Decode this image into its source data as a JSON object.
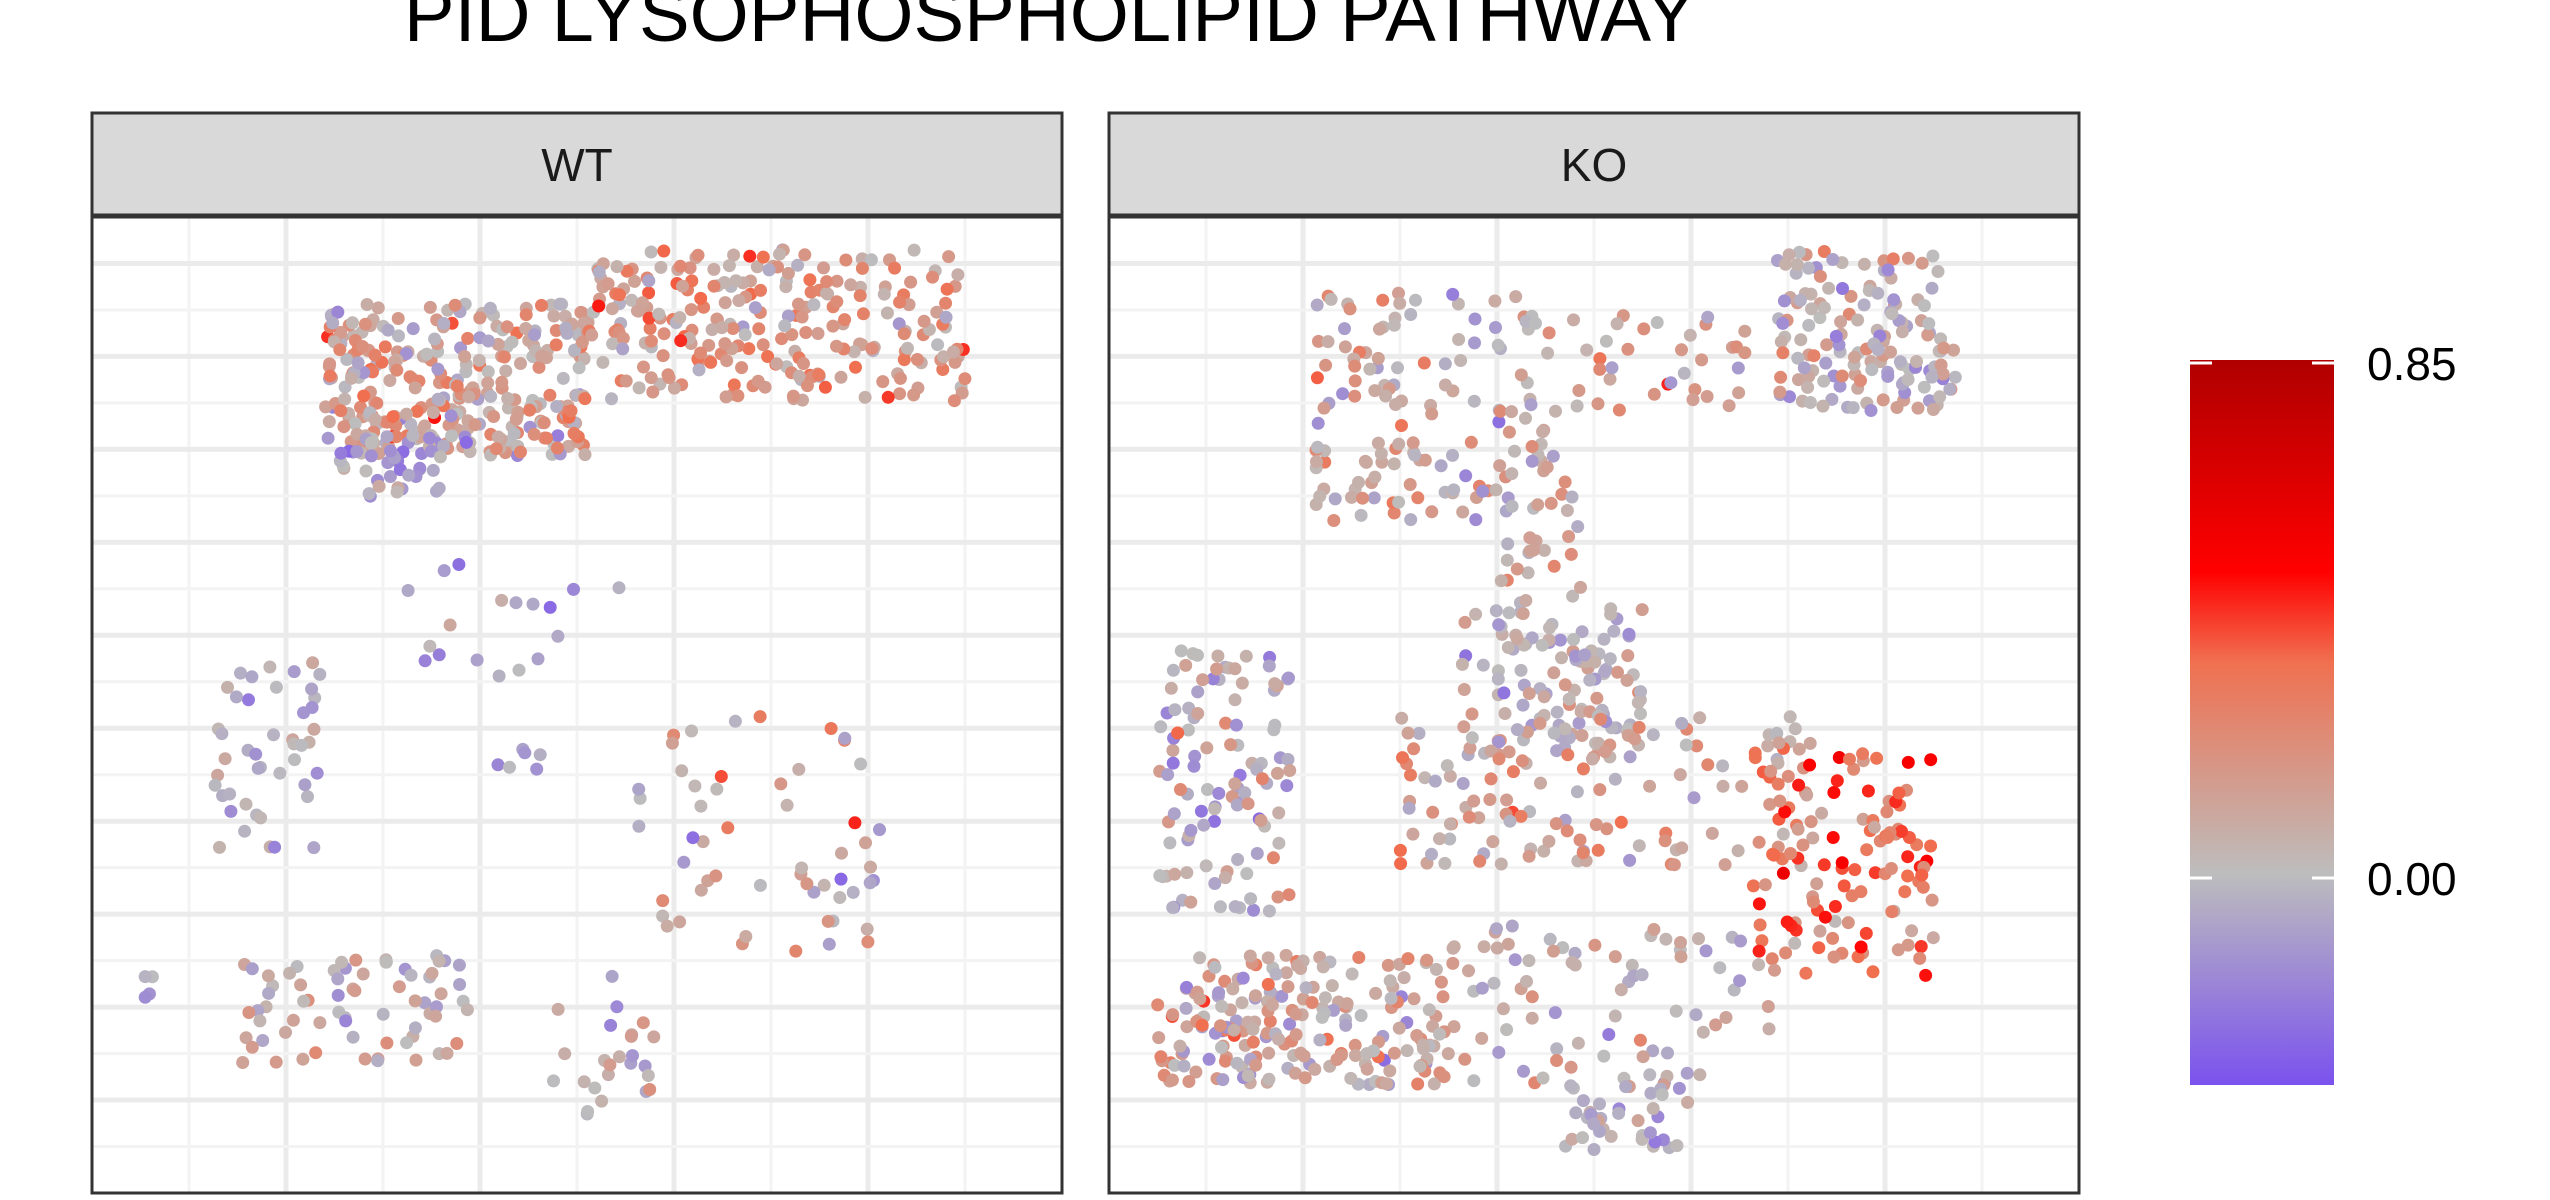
{
  "chart_data": {
    "type": "scatter",
    "title": "PID LYSOPHOSPHOLIPID PATHWAY",
    "xlabel": "",
    "ylabel": "",
    "grid": true,
    "facets": [
      "WT",
      "KO"
    ],
    "legend": {
      "placement": "right",
      "type": "colorbar",
      "title": "",
      "range": [
        -0.35,
        0.85
      ],
      "breaks": [
        0.85,
        0.0
      ],
      "break_labels": [
        "0.85",
        "0.00"
      ],
      "colors": {
        "low": "#7b52ee",
        "mid": "#bdbdbd",
        "high": "#ff0000",
        "max": "#b00000"
      },
      "stops": [
        [
          -0.35,
          "#7b52ee"
        ],
        [
          0.0,
          "#bdbdbd"
        ],
        [
          0.35,
          "#f07050"
        ],
        [
          0.5,
          "#ff0000"
        ],
        [
          0.85,
          "#b00000"
        ]
      ]
    },
    "series": [
      {
        "name": "WT",
        "clusters": [
          {
            "x": [
              -1.6,
              0.6
            ],
            "y": [
              2.8,
              4.2
            ],
            "n": 320,
            "vmean": 0.1,
            "vsd": 0.18
          },
          {
            "x": [
              0.6,
              3.7
            ],
            "y": [
              3.3,
              4.7
            ],
            "n": 260,
            "vmean": 0.14,
            "vsd": 0.17
          },
          {
            "x": [
              -1.5,
              -0.6
            ],
            "y": [
              2.4,
              3.0
            ],
            "n": 45,
            "vmean": -0.08,
            "vsd": 0.12
          },
          {
            "x": [
              -2.5,
              -1.6
            ],
            "y": [
              -0.9,
              0.9
            ],
            "n": 45,
            "vmean": -0.02,
            "vsd": 0.14
          },
          {
            "x": [
              -1.0,
              1.0
            ],
            "y": [
              0.7,
              1.8
            ],
            "n": 18,
            "vmean": -0.05,
            "vsd": 0.12
          },
          {
            "x": [
              -0.2,
              0.2
            ],
            "y": [
              -0.1,
              0.1
            ],
            "n": 6,
            "vmean": -0.1,
            "vsd": 0.06
          },
          {
            "x": [
              1.0,
              3.0
            ],
            "y": [
              -1.8,
              0.4
            ],
            "n": 55,
            "vmean": 0.08,
            "vsd": 0.2
          },
          {
            "x": [
              -3.1,
              -2.9
            ],
            "y": [
              -2.2,
              -1.9
            ],
            "n": 4,
            "vmean": -0.05,
            "vsd": 0.1
          },
          {
            "x": [
              -2.3,
              -0.4
            ],
            "y": [
              -2.8,
              -1.8
            ],
            "n": 70,
            "vmean": 0.05,
            "vsd": 0.16
          },
          {
            "x": [
              0.3,
              1.2
            ],
            "y": [
              -3.3,
              -2.0
            ],
            "n": 25,
            "vmean": 0.0,
            "vsd": 0.15
          }
        ]
      },
      {
        "name": "KO",
        "clusters": [
          {
            "x": [
              -1.8,
              0.2
            ],
            "y": [
              2.2,
              4.3
            ],
            "n": 150,
            "vmean": 0.06,
            "vsd": 0.17
          },
          {
            "x": [
              0.2,
              1.8
            ],
            "y": [
              3.2,
              4.1
            ],
            "n": 35,
            "vmean": 0.12,
            "vsd": 0.16
          },
          {
            "x": [
              2.0,
              3.5
            ],
            "y": [
              3.2,
              4.7
            ],
            "n": 150,
            "vmean": 0.04,
            "vsd": 0.16
          },
          {
            "x": [
              -0.4,
              0.4
            ],
            "y": [
              1.4,
              2.6
            ],
            "n": 25,
            "vmean": 0.1,
            "vsd": 0.16
          },
          {
            "x": [
              -0.6,
              0.9
            ],
            "y": [
              0.0,
              1.4
            ],
            "n": 120,
            "vmean": 0.0,
            "vsd": 0.14
          },
          {
            "x": [
              -3.1,
              -2.0
            ],
            "y": [
              -1.4,
              1.0
            ],
            "n": 110,
            "vmean": 0.0,
            "vsd": 0.18
          },
          {
            "x": [
              -1.1,
              2.3
            ],
            "y": [
              -1.0,
              0.4
            ],
            "n": 130,
            "vmean": 0.12,
            "vsd": 0.17
          },
          {
            "x": [
              1.8,
              3.3
            ],
            "y": [
              -2.0,
              0.2
            ],
            "n": 120,
            "vmean": 0.3,
            "vsd": 0.2
          },
          {
            "x": [
              -3.1,
              -0.8
            ],
            "y": [
              -3.0,
              -1.8
            ],
            "n": 200,
            "vmean": 0.08,
            "vsd": 0.18
          },
          {
            "x": [
              -0.8,
              2.0
            ],
            "y": [
              -3.0,
              -1.5
            ],
            "n": 90,
            "vmean": 0.05,
            "vsd": 0.15
          },
          {
            "x": [
              0.2,
              1.3
            ],
            "y": [
              -3.6,
              -3.0
            ],
            "n": 40,
            "vmean": -0.02,
            "vsd": 0.12
          }
        ]
      }
    ]
  }
}
